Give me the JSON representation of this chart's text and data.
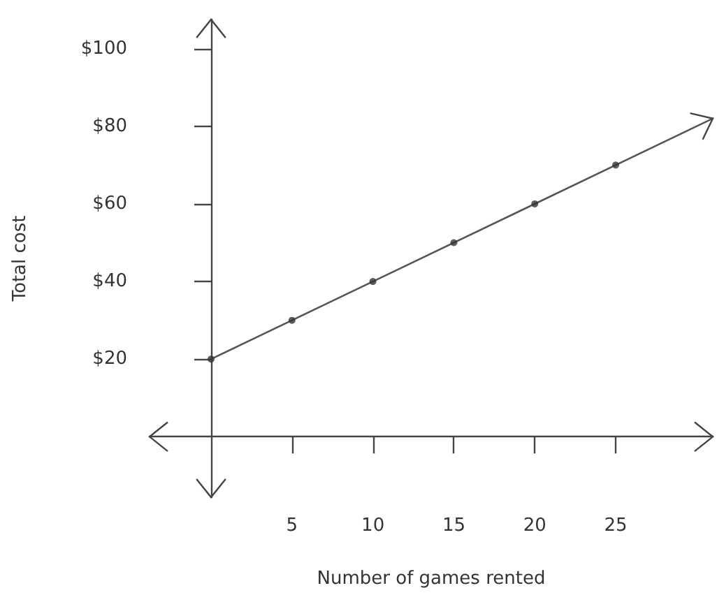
{
  "chart_data": {
    "type": "line",
    "xlabel": "Number of games rented",
    "ylabel": "Total cost",
    "series": [
      {
        "color": "#555555",
        "marker": "none",
        "x": [
          0,
          31
        ],
        "values": [
          20,
          82
        ]
      },
      {
        "type": "scatter",
        "color": "#333333",
        "marker": "circle",
        "x": [
          0,
          5,
          10,
          15,
          20,
          25
        ],
        "values": [
          20,
          30,
          40,
          50,
          60,
          70
        ]
      }
    ],
    "xlim": [
      -3.8,
      31
    ],
    "ylim": [
      -15.6,
      107.5
    ],
    "xticks": [
      5,
      10,
      15,
      20,
      25
    ],
    "yticks": [
      {
        "value": 20,
        "label": "$20"
      },
      {
        "value": 40,
        "label": "$40"
      },
      {
        "value": 60,
        "label": "$60"
      },
      {
        "value": 80,
        "label": "$80"
      },
      {
        "value": 100,
        "label": "$100"
      }
    ],
    "grid": false
  }
}
